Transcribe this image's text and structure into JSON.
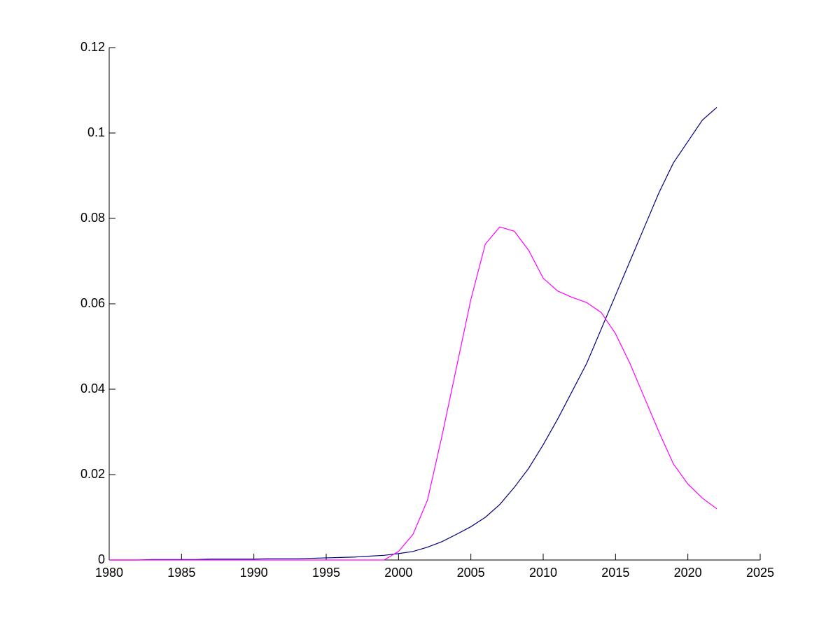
{
  "chart_data": {
    "type": "line",
    "x": [
      1980,
      1981,
      1982,
      1983,
      1984,
      1985,
      1986,
      1987,
      1988,
      1989,
      1990,
      1991,
      1992,
      1993,
      1994,
      1995,
      1996,
      1997,
      1998,
      1999,
      2000,
      2001,
      2002,
      2003,
      2004,
      2005,
      2006,
      2007,
      2008,
      2009,
      2010,
      2011,
      2012,
      2013,
      2014,
      2015,
      2016,
      2017,
      2018,
      2019,
      2020,
      2021,
      2022
    ],
    "series": [
      {
        "color": "#000080",
        "values": [
          0,
          0,
          0,
          0.0001,
          0.0001,
          0.0001,
          0.0001,
          0.0002,
          0.0002,
          0.0002,
          0.0002,
          0.0003,
          0.0003,
          0.0003,
          0.0004,
          0.0005,
          0.0006,
          0.0007,
          0.0009,
          0.0011,
          0.0015,
          0.002,
          0.003,
          0.0043,
          0.006,
          0.0078,
          0.01,
          0.013,
          0.017,
          0.0215,
          0.027,
          0.033,
          0.0395,
          0.046,
          0.054,
          0.062,
          0.07,
          0.078,
          0.086,
          0.093,
          0.098,
          0.103,
          0.106
        ]
      },
      {
        "color": "#ff00ff",
        "values": [
          0,
          0,
          0,
          0,
          0,
          0,
          0,
          0,
          0,
          0,
          0,
          0,
          0,
          0,
          0,
          0,
          0,
          0,
          0,
          0,
          0.002,
          0.006,
          0.014,
          0.029,
          0.045,
          0.061,
          0.074,
          0.078,
          0.077,
          0.0725,
          0.066,
          0.063,
          0.0615,
          0.0603,
          0.058,
          0.053,
          0.046,
          0.038,
          0.03,
          0.0225,
          0.0178,
          0.0145,
          0.012
        ]
      }
    ],
    "xlim": [
      1980,
      2025
    ],
    "xticks": [
      1980,
      1985,
      1990,
      1995,
      2000,
      2005,
      2010,
      2015,
      2020,
      2025
    ],
    "ylim": [
      0,
      0.12
    ],
    "yticks": [
      0,
      0.02,
      0.04,
      0.06,
      0.08,
      0.1,
      0.12
    ]
  }
}
